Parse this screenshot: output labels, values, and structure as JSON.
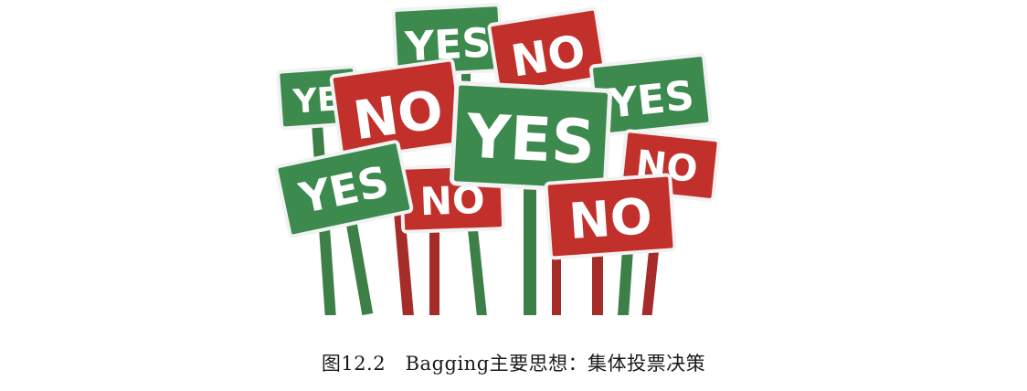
{
  "figure": {
    "colors": {
      "yes_green": "#3d8a4f",
      "no_red": "#c2302c",
      "sign_border": "#f2f2f2"
    },
    "signs": [
      {
        "id": "yes-back-top",
        "text": "YES"
      },
      {
        "id": "no-top-right",
        "text": "NO"
      },
      {
        "id": "yes-left-partial",
        "text": "YE"
      },
      {
        "id": "yes-right",
        "text": "YES"
      },
      {
        "id": "no-left-big",
        "text": "NO"
      },
      {
        "id": "no-right-small",
        "text": "NO"
      },
      {
        "id": "no-middle-partial",
        "text": "NO"
      },
      {
        "id": "yes-lower-left",
        "text": "YES"
      },
      {
        "id": "yes-center-big",
        "text": "YES"
      },
      {
        "id": "no-lower-right",
        "text": "NO"
      }
    ]
  },
  "caption": {
    "label": "图12.2",
    "text": "Bagging主要思想：集体投票决策"
  }
}
